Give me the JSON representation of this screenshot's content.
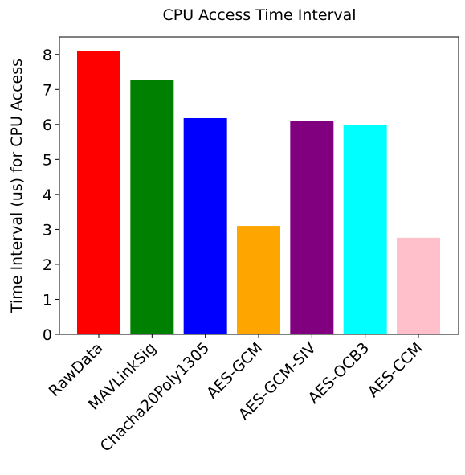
{
  "chart_data": {
    "type": "bar",
    "title": "CPU Access Time Interval",
    "xlabel": "",
    "ylabel": "Time Interval (us) for CPU Access",
    "categories": [
      "RawData",
      "MAVLinkSig",
      "Chacha20Poly1305",
      "AES-GCM",
      "AES-GCM-SIV",
      "AES-OCB3",
      "AES-CCM"
    ],
    "values": [
      8.1,
      7.28,
      6.18,
      3.1,
      6.11,
      5.98,
      2.76
    ],
    "colors": [
      "#ff0000",
      "#008000",
      "#0000ff",
      "#ffa500",
      "#800080",
      "#00ffff",
      "#ffc0cb"
    ],
    "ylim": [
      0,
      8.5
    ],
    "yticks": [
      0,
      1,
      2,
      3,
      4,
      5,
      6,
      7,
      8
    ],
    "grid": false,
    "legend": "none"
  }
}
